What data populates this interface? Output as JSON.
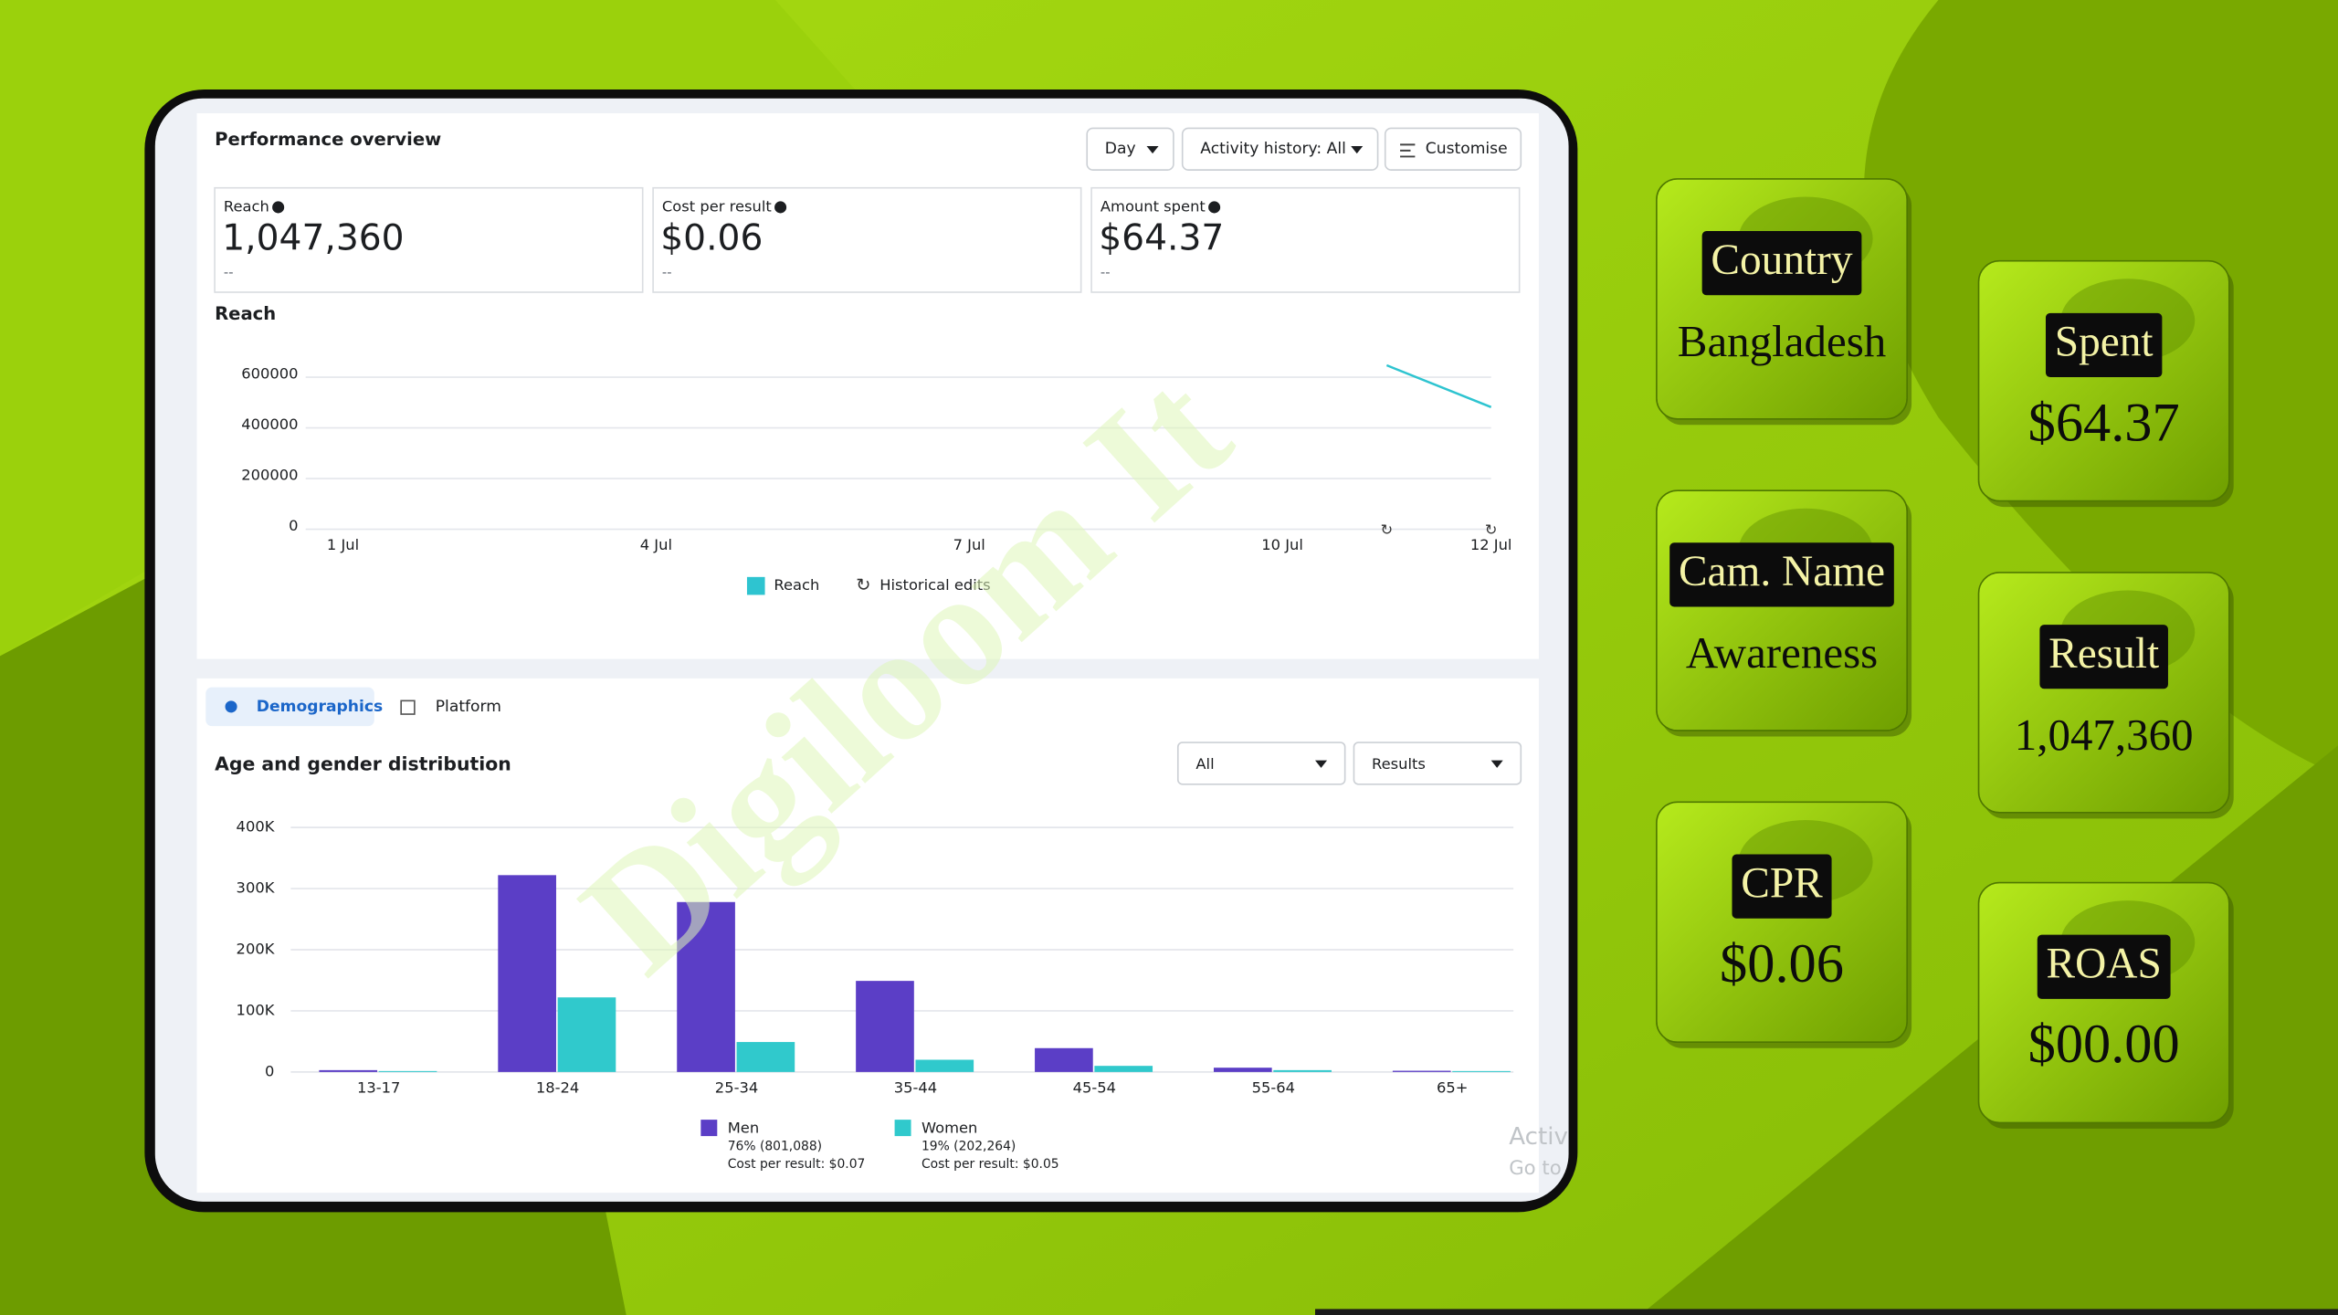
{
  "header": {
    "title": "Performance overview",
    "buttons": [
      "Day",
      "Activity history: All",
      "Customise"
    ]
  },
  "metrics": [
    {
      "label": "Reach",
      "value": "1,047,360",
      "sub": "--"
    },
    {
      "label": "Cost per result",
      "value": "$0.06",
      "sub": "--"
    },
    {
      "label": "Amount spent",
      "value": "$64.37",
      "sub": "--"
    }
  ],
  "tabs": [
    "Demographics",
    "Platform"
  ],
  "filters": [
    "All",
    "Results"
  ],
  "chart_data": [
    {
      "type": "line",
      "title": "Reach",
      "categories": [
        "1 Jul",
        null,
        null,
        "4 Jul",
        null,
        null,
        "7 Jul",
        null,
        null,
        "10 Jul",
        null,
        "12 Jul"
      ],
      "series": [
        {
          "name": "Reach",
          "color": "#2ec4d0",
          "values": [
            null,
            null,
            null,
            null,
            null,
            null,
            null,
            null,
            null,
            null,
            647000,
            482000
          ]
        }
      ],
      "extra_legend": "Historical edits",
      "ylim": [
        0,
        600000
      ],
      "yticks": [
        0,
        200000,
        400000,
        600000
      ],
      "grid": true
    },
    {
      "type": "bar",
      "title": "Age and gender distribution",
      "categories": [
        "13-17",
        "18-24",
        "25-34",
        "35-44",
        "45-54",
        "55-64",
        "65+"
      ],
      "series": [
        {
          "name": "Men",
          "color": "#5b3ec6",
          "values": [
            3000,
            322000,
            278000,
            149000,
            39000,
            7000,
            2000
          ],
          "share": "76% (801,088)",
          "cost": "Cost per result: $0.07"
        },
        {
          "name": "Women",
          "color": "#30c9cc",
          "values": [
            1500,
            122000,
            49000,
            20000,
            10000,
            3000,
            1500
          ],
          "share": "19% (202,264)",
          "cost": "Cost per result: $0.05"
        }
      ],
      "ylim": [
        0,
        400000
      ],
      "yticks": [
        {
          "value": 0,
          "label": "0"
        },
        {
          "value": 100000,
          "label": "100K"
        },
        {
          "value": 200000,
          "label": "200K"
        },
        {
          "value": 300000,
          "label": "300K"
        },
        {
          "value": 400000,
          "label": "400K"
        }
      ],
      "grid": true
    }
  ],
  "cards": [
    {
      "label": "Country",
      "value": "Bangladesh"
    },
    {
      "label": "Spent",
      "value": "$64.37"
    },
    {
      "label": "Cam. Name",
      "value": "Awareness"
    },
    {
      "label": "Result",
      "value": "1,047,360"
    },
    {
      "label": "CPR",
      "value": "$0.06"
    },
    {
      "label": "ROAS",
      "value": "$00.00"
    }
  ],
  "watermark": "Digiloom It",
  "activation": [
    "Activ",
    "Go to"
  ]
}
